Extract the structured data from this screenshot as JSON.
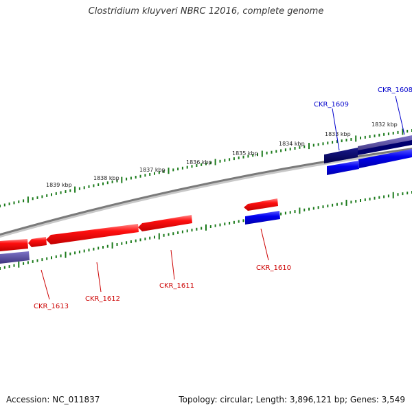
{
  "title": "Clostridium kluyveri NBRC 12016, complete genome",
  "accession": "Accession: NC_011837",
  "summary": "Topology: circular; Length: 3,896,121 bp; Genes: 3,549",
  "kbp_labels": [
    "1832 kbp",
    "1833 kbp",
    "1834 kbp",
    "1835 kbp",
    "1836 kbp",
    "1837 kbp",
    "1838 kbp",
    "1839 kbp"
  ],
  "genes": [
    {
      "id": "CKR_1608",
      "strand": "forward",
      "color": "#0000cc"
    },
    {
      "id": "CKR_1609",
      "strand": "forward",
      "color": "#0000cc"
    },
    {
      "id": "CKR_1610",
      "strand": "forward",
      "color": "#cc0000"
    },
    {
      "id": "CKR_1611",
      "strand": "reverse",
      "color": "#cc0000"
    },
    {
      "id": "CKR_1612",
      "strand": "reverse",
      "color": "#cc0000"
    },
    {
      "id": "CKR_1613",
      "strand": "reverse",
      "color": "#cc0000"
    }
  ],
  "colors": {
    "backbone": "#7a7a7a",
    "tick": "#1a7a1a",
    "forward_gene": "#0000ee",
    "reverse_gene": "#ee0000",
    "forward_label": "#0000cc",
    "reverse_label": "#cc0000",
    "dark_feature": "#00006e",
    "light_feature": "#5a4ea8"
  }
}
